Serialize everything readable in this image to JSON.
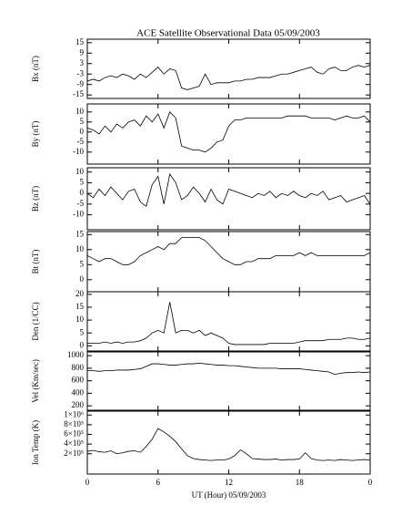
{
  "chart_data": [
    {
      "type": "line",
      "title": "ACE Satellite Observational Data   05/09/2003",
      "ylabel": "Bx (nT)",
      "color": "#000000",
      "x": [
        0,
        0.5,
        1,
        1.5,
        2,
        2.5,
        3,
        3.5,
        4,
        4.5,
        5,
        5.5,
        6,
        6.5,
        7,
        7.5,
        8,
        8.5,
        9,
        9.5,
        10,
        10.5,
        11,
        11.5,
        12,
        12.5,
        13,
        13.5,
        14,
        14.5,
        15,
        15.5,
        16,
        16.5,
        17,
        17.5,
        18,
        18.5,
        19,
        19.5,
        20,
        20.5,
        21,
        21.5,
        22,
        22.5,
        23,
        23.5,
        24
      ],
      "values": [
        -7,
        -6,
        -7,
        -5,
        -4,
        -5,
        -3,
        -4,
        -6,
        -3,
        -5,
        -2,
        1,
        -3,
        0,
        -1,
        -11,
        -12,
        -11,
        -10,
        -3,
        -9,
        -8,
        -8,
        -8,
        -7,
        -7,
        -6,
        -6,
        -5,
        -5,
        -5,
        -4,
        -3,
        -3,
        -2,
        -1,
        0,
        1,
        -2,
        -3,
        0,
        1,
        -1,
        -1,
        1,
        2,
        1,
        2
      ],
      "xlim": [
        0,
        24
      ],
      "xticks": [
        0,
        6,
        12,
        18,
        24
      ],
      "ylim": [
        -17,
        17
      ],
      "yticks": [
        -15,
        -9,
        -3,
        3,
        9,
        15
      ]
    },
    {
      "type": "line",
      "ylabel": "By (nT)",
      "color": "#000000",
      "x": [
        0,
        0.5,
        1,
        1.5,
        2,
        2.5,
        3,
        3.5,
        4,
        4.5,
        5,
        5.5,
        6,
        6.5,
        7,
        7.5,
        8,
        8.5,
        9,
        9.5,
        10,
        10.5,
        11,
        11.5,
        12,
        12.5,
        13,
        13.5,
        14,
        14.5,
        15,
        15.5,
        16,
        16.5,
        17,
        17.5,
        18,
        18.5,
        19,
        19.5,
        20,
        20.5,
        21,
        21.5,
        22,
        22.5,
        23,
        23.5,
        24
      ],
      "values": [
        2,
        1,
        -1,
        3,
        0,
        4,
        2,
        5,
        6,
        3,
        8,
        5,
        9,
        2,
        10,
        7,
        -7,
        -8,
        -9,
        -9,
        -10,
        -8,
        -5,
        -4,
        3,
        6,
        6,
        7,
        7,
        7,
        7,
        7,
        7,
        7,
        8,
        8,
        8,
        8,
        7,
        7,
        7,
        7,
        6,
        7,
        8,
        7,
        7,
        8,
        5
      ],
      "xlim": [
        0,
        24
      ],
      "xticks": [
        0,
        6,
        12,
        18,
        24
      ],
      "ylim": [
        -16,
        14
      ],
      "yticks": [
        -10,
        -5,
        0,
        5,
        10
      ]
    },
    {
      "type": "line",
      "ylabel": "Bz (nT)",
      "color": "#000000",
      "x": [
        0,
        0.5,
        1,
        1.5,
        2,
        2.5,
        3,
        3.5,
        4,
        4.5,
        5,
        5.5,
        6,
        6.5,
        7,
        7.5,
        8,
        8.5,
        9,
        9.5,
        10,
        10.5,
        11,
        11.5,
        12,
        12.5,
        13,
        13.5,
        14,
        14.5,
        15,
        15.5,
        16,
        16.5,
        17,
        17.5,
        18,
        18.5,
        19,
        19.5,
        20,
        20.5,
        21,
        21.5,
        22,
        22.5,
        23,
        23.5,
        24
      ],
      "values": [
        0,
        -2,
        2,
        -1,
        3,
        0,
        -3,
        1,
        2,
        -4,
        -6,
        4,
        8,
        -5,
        9,
        5,
        -3,
        -1,
        3,
        0,
        -4,
        2,
        -3,
        -5,
        2,
        1,
        0,
        -1,
        -2,
        0,
        -1,
        1,
        -2,
        0,
        -1,
        1,
        -1,
        -2,
        0,
        -1,
        1,
        -3,
        -2,
        -1,
        -4,
        -3,
        -2,
        -1,
        -5
      ],
      "xlim": [
        0,
        24
      ],
      "xticks": [
        0,
        6,
        12,
        18,
        24
      ],
      "ylim": [
        -17,
        12
      ],
      "yticks": [
        -10,
        -5,
        0,
        5,
        10
      ]
    },
    {
      "type": "line",
      "ylabel": "Bt (nT)",
      "color": "#000000",
      "x": [
        0,
        0.5,
        1,
        1.5,
        2,
        2.5,
        3,
        3.5,
        4,
        4.5,
        5,
        5.5,
        6,
        6.5,
        7,
        7.5,
        8,
        8.5,
        9,
        9.5,
        10,
        10.5,
        11,
        11.5,
        12,
        12.5,
        13,
        13.5,
        14,
        14.5,
        15,
        15.5,
        16,
        16.5,
        17,
        17.5,
        18,
        18.5,
        19,
        19.5,
        20,
        20.5,
        21,
        21.5,
        22,
        22.5,
        23,
        23.5,
        24
      ],
      "values": [
        8,
        7,
        6,
        7,
        7,
        6,
        5,
        5,
        6,
        8,
        9,
        10,
        11,
        10,
        12,
        12,
        14,
        14,
        14,
        14,
        13,
        11,
        9,
        7,
        6,
        5,
        5,
        6,
        6,
        7,
        7,
        7,
        8,
        8,
        8,
        8,
        9,
        8,
        9,
        8,
        8,
        8,
        8,
        8,
        8,
        8,
        8,
        8,
        9
      ],
      "xlim": [
        0,
        24
      ],
      "xticks": [
        0,
        6,
        12,
        18,
        24
      ],
      "ylim": [
        -4,
        16
      ],
      "yticks": [
        0,
        5,
        10,
        15
      ]
    },
    {
      "type": "line",
      "ylabel": "Den (1/CC)",
      "color": "#000000",
      "x": [
        0,
        0.5,
        1,
        1.5,
        2,
        2.5,
        3,
        3.5,
        4,
        4.5,
        5,
        5.5,
        6,
        6.5,
        7,
        7.5,
        8,
        8.5,
        9,
        9.5,
        10,
        10.5,
        11,
        11.5,
        12,
        12.5,
        13,
        13.5,
        14,
        14.5,
        15,
        15.5,
        16,
        16.5,
        17,
        17.5,
        18,
        18.5,
        19,
        19.5,
        20,
        20.5,
        21,
        21.5,
        22,
        22.5,
        23,
        23.5,
        24
      ],
      "values": [
        1,
        1,
        1,
        1.5,
        1,
        1.5,
        1,
        1.5,
        1.5,
        2,
        3,
        5,
        6,
        5,
        17,
        5,
        6,
        6,
        5,
        6,
        4,
        5,
        4,
        3,
        1,
        0.5,
        0.5,
        0.5,
        0.5,
        0.5,
        0.5,
        1,
        1,
        1,
        1,
        1,
        1.5,
        2,
        2,
        2,
        2,
        2.5,
        2.5,
        2.5,
        3,
        3,
        2.5,
        2.5,
        3
      ],
      "xlim": [
        0,
        24
      ],
      "xticks": [
        0,
        6,
        12,
        18,
        24
      ],
      "ylim": [
        -2,
        21
      ],
      "yticks": [
        0,
        5,
        10,
        15,
        20
      ]
    },
    {
      "type": "line",
      "ylabel": "Vel (Km/sec)",
      "color": "#000000",
      "x": [
        0,
        0.5,
        1,
        1.5,
        2,
        2.5,
        3,
        3.5,
        4,
        4.5,
        5,
        5.5,
        6,
        6.5,
        7,
        7.5,
        8,
        8.5,
        9,
        9.5,
        10,
        10.5,
        11,
        11.5,
        12,
        12.5,
        13,
        13.5,
        14,
        14.5,
        15,
        15.5,
        16,
        16.5,
        17,
        17.5,
        18,
        18.5,
        19,
        19.5,
        20,
        20.5,
        21,
        21.5,
        22,
        22.5,
        23,
        23.5,
        24
      ],
      "values": [
        760,
        760,
        750,
        760,
        760,
        770,
        770,
        770,
        780,
        790,
        830,
        870,
        870,
        860,
        850,
        850,
        860,
        870,
        870,
        880,
        870,
        860,
        850,
        850,
        840,
        840,
        830,
        820,
        810,
        800,
        800,
        800,
        800,
        790,
        790,
        790,
        790,
        780,
        770,
        760,
        750,
        740,
        700,
        720,
        730,
        730,
        740,
        730,
        740
      ],
      "xlim": [
        0,
        24
      ],
      "xticks": [
        0,
        6,
        12,
        18,
        24
      ],
      "ylim": [
        130,
        1060
      ],
      "yticks": [
        200,
        400,
        600,
        800,
        1000
      ]
    },
    {
      "type": "line",
      "ylabel": "Ion Temp (K)",
      "xlabel": "UT (Hour)   05/09/2003",
      "color": "#000000",
      "x": [
        0,
        0.5,
        1,
        1.5,
        2,
        2.5,
        3,
        3.5,
        4,
        4.5,
        5,
        5.5,
        6,
        6.5,
        7,
        7.5,
        8,
        8.5,
        9,
        9.5,
        10,
        10.5,
        11,
        11.5,
        12,
        12.5,
        13,
        13.5,
        14,
        14.5,
        15,
        15.5,
        16,
        16.5,
        17,
        17.5,
        18,
        18.5,
        19,
        19.5,
        20,
        20.5,
        21,
        21.5,
        22,
        22.5,
        23,
        23.5,
        24
      ],
      "values": [
        250000,
        270000,
        240000,
        230000,
        260000,
        200000,
        220000,
        250000,
        260000,
        230000,
        350000,
        500000,
        720000,
        650000,
        560000,
        450000,
        300000,
        160000,
        100000,
        80000,
        70000,
        60000,
        70000,
        70000,
        90000,
        160000,
        280000,
        200000,
        100000,
        90000,
        80000,
        80000,
        90000,
        70000,
        80000,
        80000,
        90000,
        220000,
        100000,
        70000,
        60000,
        70000,
        60000,
        80000,
        70000,
        60000,
        70000,
        80000,
        70000
      ],
      "xlim": [
        0,
        24
      ],
      "xticks": [
        0,
        6,
        12,
        18,
        {
          "value": 24,
          "label": "0"
        }
      ],
      "ylim": [
        -220000,
        1080000
      ],
      "yticks": [
        {
          "value": 200000,
          "label": "2×10⁵"
        },
        {
          "value": 400000,
          "label": "4×10⁵"
        },
        {
          "value": 600000,
          "label": "6×10⁵"
        },
        {
          "value": 800000,
          "label": "8×10⁵"
        },
        {
          "value": 1000000,
          "label": "1×10⁶"
        }
      ]
    }
  ]
}
